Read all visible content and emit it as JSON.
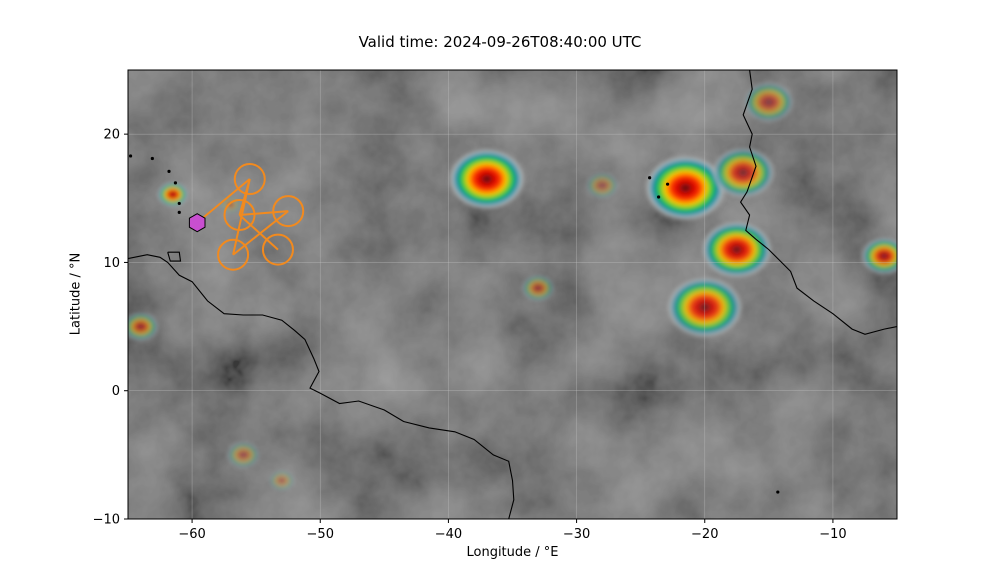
{
  "title": "Valid time: 2024-09-26T08:40:00 UTC",
  "chart_data": {
    "type": "map",
    "title": "Valid time: 2024-09-26T08:40:00 UTC",
    "xlabel": "Longitude / °E",
    "ylabel": "Latitude / °N",
    "xlim": [
      -65,
      -5
    ],
    "ylim": [
      -10,
      25
    ],
    "xticks": [
      -60,
      -50,
      -40,
      -30,
      -20,
      -10
    ],
    "yticks": [
      -10,
      0,
      10,
      20
    ],
    "xtick_labels": [
      "−60",
      "−50",
      "−40",
      "−30",
      "−20",
      "−10"
    ],
    "ytick_labels": [
      "−10",
      "0",
      "10",
      "20"
    ],
    "grid": true,
    "background": "infrared satellite brightness temperature (grayscale with colour-enhanced cold cloud tops)",
    "marker": {
      "shape": "hexagon",
      "lon": -59.6,
      "lat": 13.1,
      "color": "#c84fd0"
    },
    "flight_track": {
      "color": "#f28a1e",
      "circles": [
        {
          "lon": -55.5,
          "lat": 16.5
        },
        {
          "lon": -56.3,
          "lat": 13.7
        },
        {
          "lon": -52.5,
          "lat": 14.0
        },
        {
          "lon": -56.8,
          "lat": 10.6
        },
        {
          "lon": -53.3,
          "lat": 11.0
        }
      ]
    },
    "convection": [
      {
        "lon": -37,
        "lat": 16.5,
        "r": 3.0,
        "i": 1.0
      },
      {
        "lon": -21.5,
        "lat": 15.8,
        "r": 3.2,
        "i": 1.0
      },
      {
        "lon": -17.5,
        "lat": 11.0,
        "r": 2.8,
        "i": 0.9
      },
      {
        "lon": -20,
        "lat": 6.5,
        "r": 3.0,
        "i": 0.85
      },
      {
        "lon": -17,
        "lat": 17,
        "r": 2.5,
        "i": 0.7
      },
      {
        "lon": -15,
        "lat": 22.5,
        "r": 2.0,
        "i": 0.5
      },
      {
        "lon": -61.5,
        "lat": 15.3,
        "r": 1.2,
        "i": 0.9
      },
      {
        "lon": -64,
        "lat": 5,
        "r": 1.4,
        "i": 0.6
      },
      {
        "lon": -6,
        "lat": 10.5,
        "r": 1.8,
        "i": 0.8
      },
      {
        "lon": -33,
        "lat": 8,
        "r": 1.3,
        "i": 0.5
      },
      {
        "lon": -56,
        "lat": -5,
        "r": 1.3,
        "i": 0.4
      },
      {
        "lon": -53,
        "lat": -7,
        "r": 1.0,
        "i": 0.35
      },
      {
        "lon": -28,
        "lat": 16,
        "r": 1.3,
        "i": 0.35
      },
      {
        "lon": -57,
        "lat": 14.5,
        "r": 0.8,
        "i": 0.4
      }
    ],
    "coastlines": [
      [
        [
          -65,
          10.3
        ],
        [
          -63.5,
          10.6
        ],
        [
          -62.5,
          10.4
        ],
        [
          -61.9,
          10.0
        ],
        [
          -61.0,
          9.0
        ],
        [
          -60.0,
          8.5
        ],
        [
          -58.8,
          7.0
        ],
        [
          -57.5,
          6.0
        ],
        [
          -56,
          5.9
        ],
        [
          -54.5,
          5.9
        ],
        [
          -53,
          5.5
        ],
        [
          -52,
          4.7
        ],
        [
          -51.2,
          4.0
        ],
        [
          -50.5,
          2.5
        ],
        [
          -50.1,
          1.5
        ],
        [
          -50.8,
          0.2
        ],
        [
          -50,
          -0.2
        ],
        [
          -48.5,
          -1.0
        ],
        [
          -47,
          -0.8
        ],
        [
          -45,
          -1.5
        ],
        [
          -43.5,
          -2.4
        ],
        [
          -41.5,
          -2.9
        ],
        [
          -39.5,
          -3.2
        ],
        [
          -38,
          -3.8
        ],
        [
          -36.5,
          -5.0
        ],
        [
          -35.3,
          -5.5
        ],
        [
          -35.0,
          -7.0
        ],
        [
          -34.9,
          -8.5
        ],
        [
          -35.3,
          -10
        ]
      ],
      [
        [
          -16.5,
          25
        ],
        [
          -16.3,
          23.5
        ],
        [
          -17.0,
          21.5
        ],
        [
          -16.3,
          20.0
        ],
        [
          -16.5,
          19.0
        ],
        [
          -16.0,
          17.5
        ],
        [
          -16.7,
          15.5
        ],
        [
          -17.2,
          14.7
        ],
        [
          -16.5,
          13.7
        ],
        [
          -16.8,
          12.5
        ],
        [
          -16.0,
          11.8
        ],
        [
          -15.0,
          11.0
        ],
        [
          -14.2,
          10.2
        ],
        [
          -13.3,
          9.3
        ],
        [
          -12.8,
          8.0
        ],
        [
          -11.5,
          7.0
        ],
        [
          -10.0,
          6.0
        ],
        [
          -8.5,
          4.8
        ],
        [
          -7.5,
          4.4
        ],
        [
          -6.0,
          4.8
        ],
        [
          -5,
          5.0
        ]
      ],
      [
        [
          -61.9,
          10.8
        ],
        [
          -61.0,
          10.8
        ],
        [
          -60.9,
          10.1
        ],
        [
          -61.7,
          10.1
        ],
        [
          -61.9,
          10.8
        ]
      ]
    ],
    "islands": [
      {
        "lon": -61.0,
        "lat": 14.6
      },
      {
        "lon": -61.3,
        "lat": 16.2
      },
      {
        "lon": -61.0,
        "lat": 13.9
      },
      {
        "lon": -61.8,
        "lat": 17.1
      },
      {
        "lon": -63.1,
        "lat": 18.1
      },
      {
        "lon": -64.8,
        "lat": 18.3
      },
      {
        "lon": -23.6,
        "lat": 15.1
      },
      {
        "lon": -24.3,
        "lat": 16.6
      },
      {
        "lon": -22.9,
        "lat": 16.1
      },
      {
        "lon": -14.3,
        "lat": -7.9
      }
    ]
  }
}
